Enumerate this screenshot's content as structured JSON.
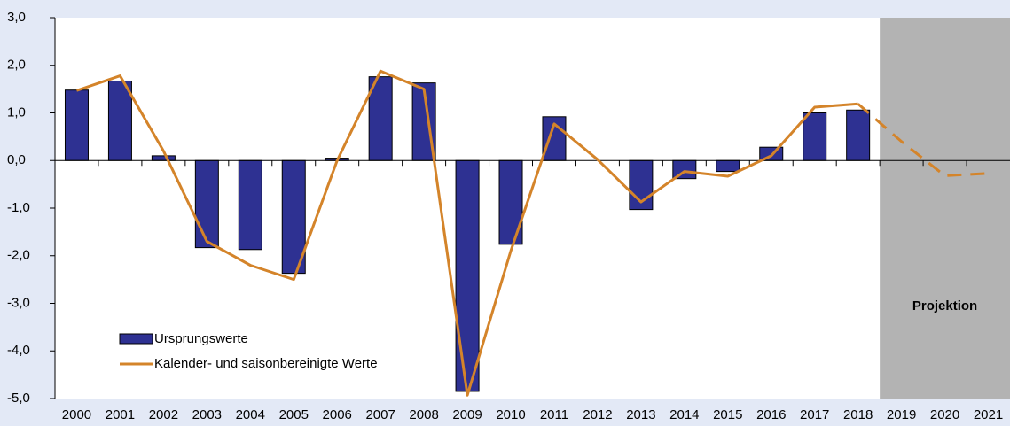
{
  "chart_data": {
    "type": "bar_line",
    "categories": [
      "2000",
      "2001",
      "2002",
      "2003",
      "2004",
      "2005",
      "2006",
      "2007",
      "2008",
      "2009",
      "2010",
      "2011",
      "2012",
      "2013",
      "2014",
      "2015",
      "2016",
      "2017",
      "2018",
      "2019",
      "2020",
      "2021"
    ],
    "series": [
      {
        "name": "Ursprungswerte",
        "type": "bar",
        "color": "#2e3192",
        "values": [
          1.48,
          1.67,
          0.1,
          -1.83,
          -1.87,
          -2.37,
          0.05,
          1.76,
          1.63,
          -4.85,
          -1.76,
          0.92,
          null,
          -1.03,
          -0.38,
          -0.23,
          0.28,
          1.0,
          1.06,
          null,
          null,
          null
        ]
      },
      {
        "name": "Kalender- und saisonbereinigte Werte",
        "type": "line",
        "color": "#d4842a",
        "values": [
          1.47,
          1.78,
          0.2,
          -1.7,
          -2.2,
          -2.5,
          0.0,
          1.88,
          1.5,
          -4.93,
          -1.9,
          0.77,
          0.02,
          -0.87,
          -0.23,
          -0.33,
          0.1,
          1.12,
          1.19,
          null,
          null,
          null
        ],
        "projection_values": [
          null,
          null,
          null,
          null,
          null,
          null,
          null,
          null,
          null,
          null,
          null,
          null,
          null,
          null,
          null,
          null,
          null,
          null,
          1.19,
          0.4,
          -0.32,
          -0.27
        ]
      }
    ],
    "projection_label": "Projektion",
    "projection_start": 19,
    "ylim": [
      -5,
      3
    ],
    "yticks": [
      {
        "value": -5,
        "label": "-5,0"
      },
      {
        "value": -4,
        "label": "-4,0"
      },
      {
        "value": -3,
        "label": "-3,0"
      },
      {
        "value": -2,
        "label": "-2,0"
      },
      {
        "value": -1,
        "label": "-1,0"
      },
      {
        "value": 0,
        "label": "0,0"
      },
      {
        "value": 1,
        "label": "1,0"
      },
      {
        "value": 2,
        "label": "2,0"
      },
      {
        "value": 3,
        "label": "3,0"
      }
    ],
    "legend": "lower-left"
  }
}
